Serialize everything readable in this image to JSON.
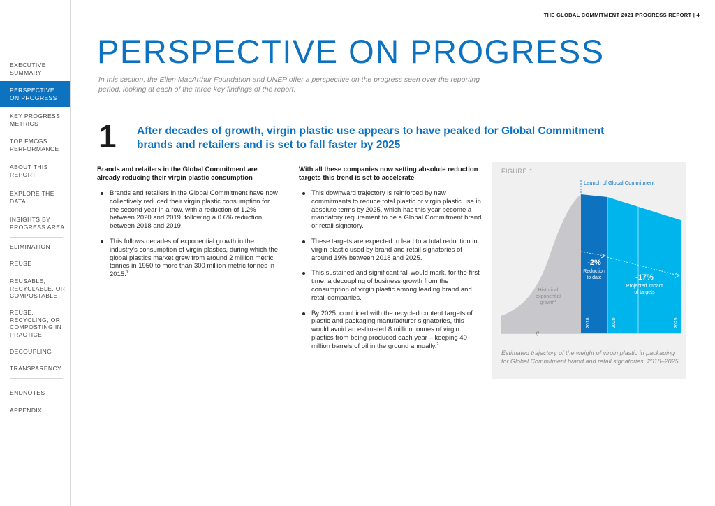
{
  "header": {
    "running_title": "THE GLOBAL COMMITMENT 2021 PROGRESS REPORT  |  4"
  },
  "sidebar": {
    "items": [
      {
        "label": "EXECUTIVE SUMMARY"
      },
      {
        "label": "PERSPECTIVE ON PROGRESS"
      },
      {
        "label": "KEY PROGRESS METRICS"
      },
      {
        "label": "TOP FMCGS PERFORMANCE"
      },
      {
        "label": "ABOUT THIS REPORT"
      },
      {
        "label": "EXPLORE THE DATA"
      },
      {
        "label": "INSIGHTS BY PROGRESS AREA"
      },
      {
        "label": "ELIMINATION"
      },
      {
        "label": "REUSE"
      },
      {
        "label": "REUSABLE, RECYCLABLE, OR COMPOSTABLE"
      },
      {
        "label": "REUSE, RECYCLING, OR COMPOSTING IN PRACTICE"
      },
      {
        "label": "DECOUPLING"
      },
      {
        "label": "TRANSPARENCY"
      },
      {
        "label": "ENDNOTES"
      },
      {
        "label": "APPENDIX"
      }
    ]
  },
  "main": {
    "title": "PERSPECTIVE ON PROGRESS",
    "intro": "In this section, the Ellen MacArthur Foundation and UNEP offer a perspective on the progress seen over the reporting period, looking at each of the three key findings of the report.",
    "finding_number": "1",
    "finding_heading": "After decades of growth, virgin plastic use appears to have peaked for Global Commitment brands and retailers and is set to fall faster by 2025",
    "left_col": {
      "heading": "Brands and retailers in the Global Commitment are already reducing their virgin plastic consumption",
      "bullets": [
        "Brands and retailers in the Global Commitment have now collectively reduced their virgin plastic consumption for the second year in a row, with a reduction of 1.2% between 2020 and 2019, following a 0.6% reduction between 2018 and 2019.",
        "This follows decades of exponential growth in the industry's consumption of virgin plastics, during which the global plastics market grew from around 2 million metric tonnes in 1950 to more than 300 million metric tonnes in 2015."
      ],
      "footnote_1": "1"
    },
    "mid_col": {
      "heading": "With all these companies now setting absolute reduction targets this trend is set to accelerate",
      "bullets": [
        "This downward trajectory is reinforced by new commitments to reduce total plastic or virgin plastic use in absolute terms by 2025, which has this year become a mandatory requirement to be a Global Commitment brand or retail signatory.",
        "These targets are expected to lead to a total reduction in virgin plastic used by brand and retail signatories of around 19% between 2018 and 2025.",
        "This sustained and significant fall would mark, for the first time, a decoupling of business growth from the consumption of virgin plastic among leading brand and retail companies.",
        "By 2025, combined with the recycled content targets of plastic and packaging manufacturer signatories, this would avoid an estimated 8 million tonnes of virgin plastics from being produced each year – keeping 40 million barrels of oil in the ground annually."
      ],
      "footnote_2": "2"
    }
  },
  "figure": {
    "label": "FIGURE 1",
    "caption": "Estimated trajectory of the weight of virgin plastic in packaging for Global Commitment brand and retail signatories, 2018–2025",
    "colors": {
      "historical": "#c8c8cc",
      "to_date": "#0d72c0",
      "projected": "#00b4ec",
      "launch_label": "#0d72c0"
    },
    "launch_label": "Launch of Global Commitment",
    "historical_label_1": "Historical",
    "historical_label_2": "exponential",
    "historical_label_3": "growth",
    "historical_footnote": "1",
    "to_date_pct": "-2%",
    "to_date_label_1": "Reduction",
    "to_date_label_2": "to date",
    "projected_pct": "-17%",
    "projected_label_1": "Projected impact",
    "projected_label_2": "of targets",
    "axis_break": "//",
    "years": [
      "2018",
      "2020",
      "2025"
    ]
  }
}
